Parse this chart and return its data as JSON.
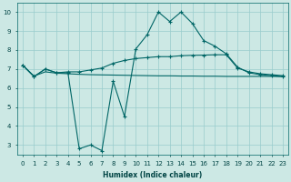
{
  "xlabel": "Humidex (Indice chaleur)",
  "ylabel": "",
  "background_color": "#cce8e4",
  "grid_color": "#99cccc",
  "line_color": "#006666",
  "xlim": [
    -0.5,
    23.5
  ],
  "ylim": [
    2.5,
    10.5
  ],
  "xticks": [
    0,
    1,
    2,
    3,
    4,
    5,
    6,
    7,
    8,
    9,
    10,
    11,
    12,
    13,
    14,
    15,
    16,
    17,
    18,
    19,
    20,
    21,
    22,
    23
  ],
  "yticks": [
    3,
    4,
    5,
    6,
    7,
    8,
    9,
    10
  ],
  "line1_x": [
    0,
    1,
    2,
    3,
    4,
    5,
    6,
    7,
    8,
    9,
    10,
    11,
    12,
    13,
    14,
    15,
    16,
    17,
    18,
    19,
    20,
    21,
    22,
    23
  ],
  "line1_y": [
    7.2,
    6.6,
    7.0,
    6.8,
    6.8,
    2.8,
    3.0,
    2.7,
    6.35,
    4.5,
    8.05,
    8.8,
    10.0,
    9.5,
    10.0,
    9.4,
    8.5,
    8.2,
    7.8,
    7.1,
    6.8,
    6.7,
    6.65,
    6.6
  ],
  "line2_x": [
    0,
    1,
    2,
    3,
    4,
    5,
    6,
    7,
    8,
    9,
    10,
    11,
    12,
    13,
    14,
    15,
    16,
    17,
    18,
    19,
    20,
    21,
    22,
    23
  ],
  "line2_y": [
    7.2,
    6.6,
    7.0,
    6.8,
    6.85,
    6.85,
    6.95,
    7.05,
    7.3,
    7.45,
    7.55,
    7.6,
    7.65,
    7.65,
    7.7,
    7.72,
    7.73,
    7.75,
    7.75,
    7.05,
    6.85,
    6.75,
    6.7,
    6.65
  ],
  "line3_x": [
    0,
    1,
    2,
    3,
    4,
    5,
    6,
    7,
    8,
    9,
    10,
    11,
    12,
    13,
    14,
    15,
    16,
    17,
    18,
    19,
    20,
    21,
    22,
    23
  ],
  "line3_y": [
    7.2,
    6.63,
    6.85,
    6.78,
    6.75,
    6.72,
    6.7,
    6.69,
    6.68,
    6.67,
    6.66,
    6.65,
    6.64,
    6.64,
    6.63,
    6.63,
    6.62,
    6.62,
    6.61,
    6.61,
    6.61,
    6.61,
    6.61,
    6.6
  ]
}
